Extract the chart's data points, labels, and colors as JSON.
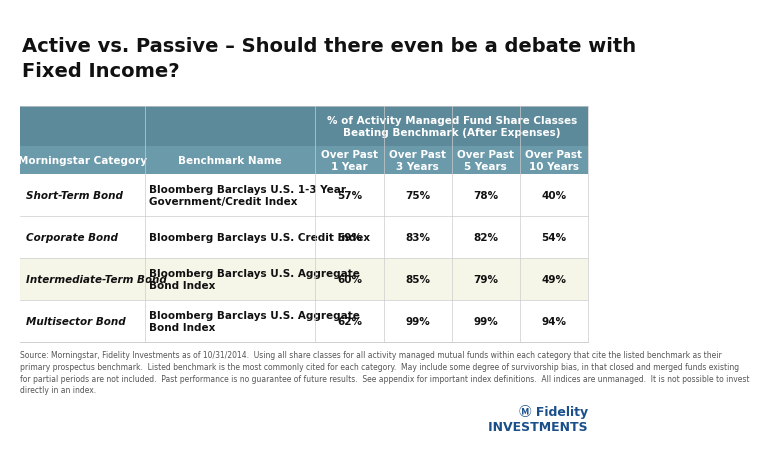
{
  "title": "Active vs. Passive – Should there even be a debate with\nFixed Income?",
  "header_top": "% of Activity Managed Fund Share Classes\nBeating Benchmark (After Expenses)",
  "col_headers": [
    "Morningstar Category",
    "Benchmark Name",
    "Over Past\n1 Year",
    "Over Past\n3 Years",
    "Over Past\n5 Years",
    "Over Past\n10 Years"
  ],
  "rows": [
    {
      "category": "Short-Term Bond",
      "benchmark": "Bloomberg Barclays U.S. 1-3 Year\nGovernment/Credit Index",
      "values": [
        "57%",
        "75%",
        "78%",
        "40%"
      ],
      "shaded": false
    },
    {
      "category": "Corporate Bond",
      "benchmark": "Bloomberg Barclays U.S. Credit Index",
      "values": [
        "59%",
        "83%",
        "82%",
        "54%"
      ],
      "shaded": false
    },
    {
      "category": "Intermediate-Term Bond",
      "benchmark": "Bloomberg Barclays U.S. Aggregate\nBond Index",
      "values": [
        "60%",
        "85%",
        "79%",
        "49%"
      ],
      "shaded": true
    },
    {
      "category": "Multisector Bond",
      "benchmark": "Bloomberg Barclays U.S. Aggregate\nBond Index",
      "values": [
        "62%",
        "99%",
        "99%",
        "94%"
      ],
      "shaded": false
    }
  ],
  "header_bg": "#5d8a9b",
  "subheader_bg": "#6b9aab",
  "row_shaded_bg": "#f5f5e8",
  "row_normal_bg": "#ffffff",
  "header_text_color": "#ffffff",
  "row_text_color": "#000000",
  "category_text_color": "#1a1a1a",
  "border_color": "#cccccc",
  "footer_text": "Source: Morningstar, Fidelity Investments as of 10/31/2014.  Using all share classes for all activity managed mutual funds within each category that cite the listed benchmark as their\nprimary prospectus benchmark.  Listed benchmark is the most commonly cited for each category.  May include some degree of survivorship bias, in that closed and merged funds existing\nfor partial periods are not included.  Past performance is no guarantee of future results.  See appendix for important index definitions.  All indices are unmanaged.  It is not possible to invest\ndirectly in an index.",
  "title_fontsize": 14,
  "header_fontsize": 7.5,
  "col_header_fontsize": 7.5,
  "row_fontsize": 7.5,
  "footer_fontsize": 5.5
}
